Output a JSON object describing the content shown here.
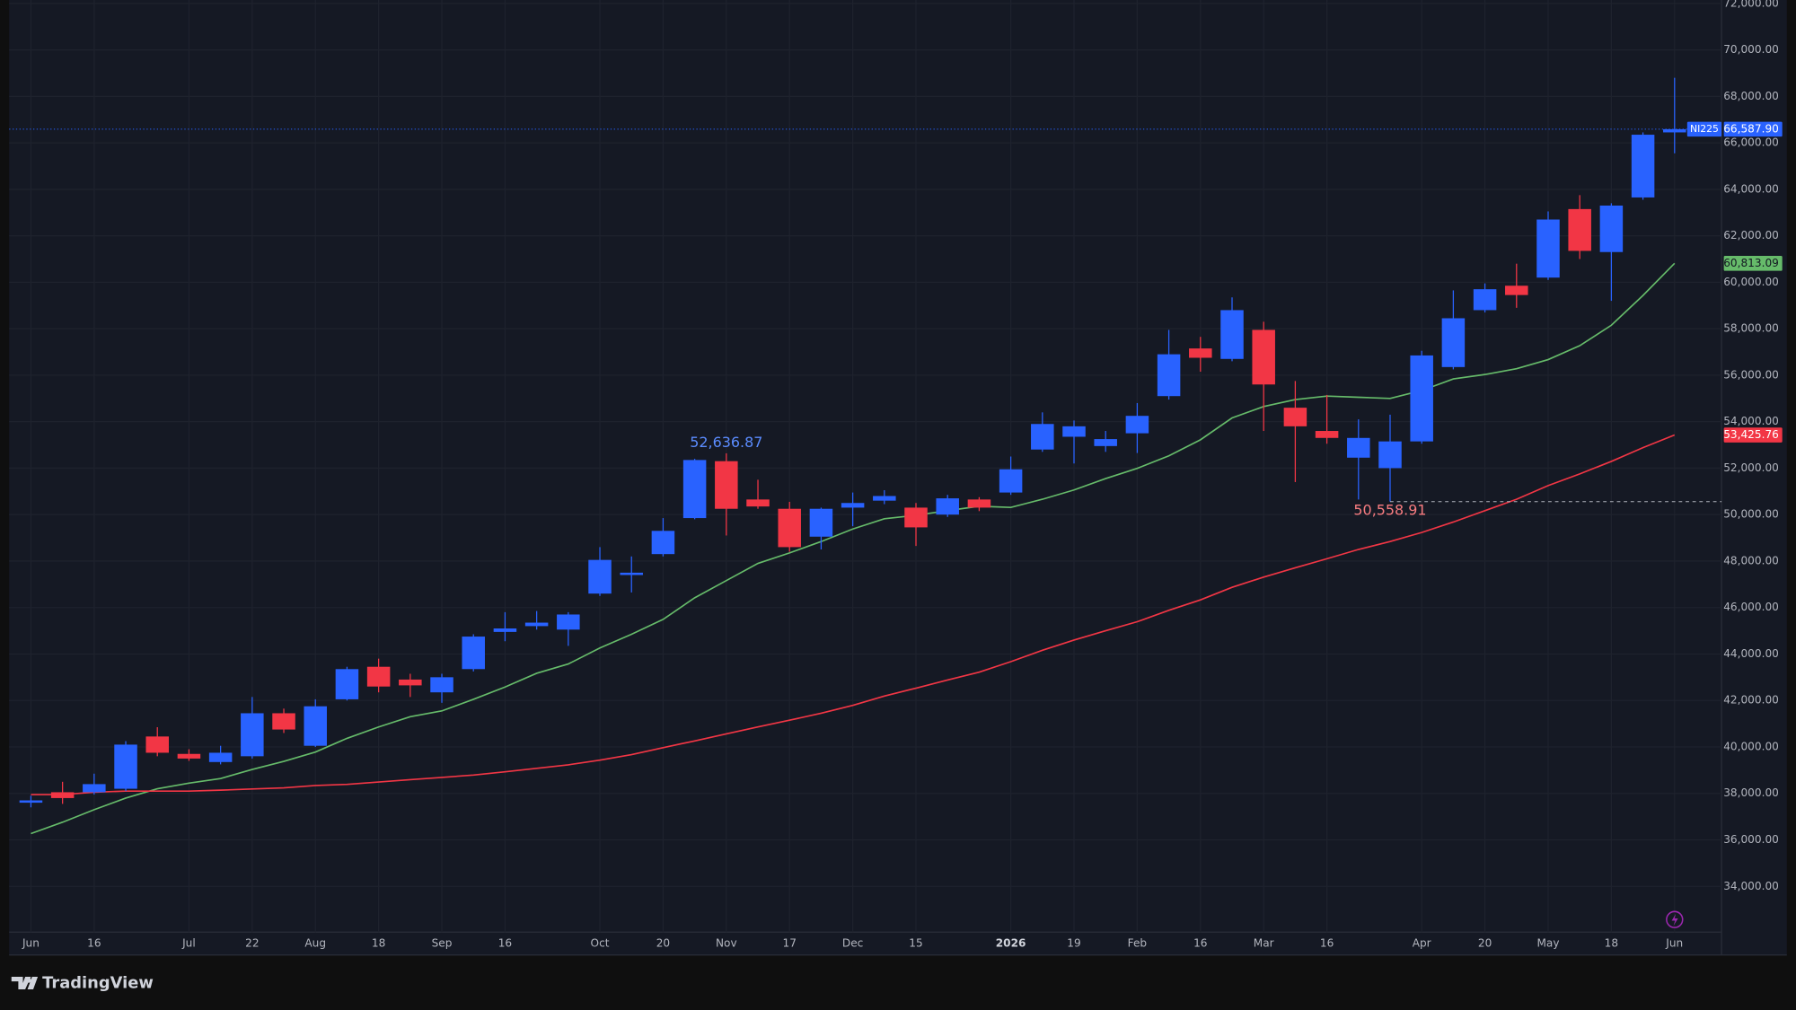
{
  "brand": "TradingView",
  "chart_data": {
    "type": "candlestick",
    "symbol": "NI225",
    "categories": [
      "Jun",
      null,
      "16",
      null,
      null,
      "Jul",
      null,
      "22",
      null,
      "Aug",
      null,
      "18",
      null,
      "Sep",
      null,
      "16",
      null,
      null,
      "Oct",
      null,
      "20",
      null,
      "Nov",
      null,
      "17",
      null,
      "Dec",
      null,
      "15",
      null,
      null,
      "2026",
      null,
      "19",
      null,
      "Feb",
      null,
      "16",
      null,
      "Mar",
      null,
      "16",
      null,
      null,
      "Apr",
      null,
      "20",
      null,
      "May",
      null,
      "18",
      null,
      "Jun"
    ],
    "open": [
      37600,
      38050,
      38050,
      38200,
      40450,
      39700,
      39350,
      39600,
      41450,
      40050,
      42050,
      43450,
      42900,
      42350,
      43350,
      44950,
      45200,
      45050,
      46600,
      47400,
      48300,
      49850,
      52300,
      50650,
      50250,
      49050,
      50300,
      50600,
      50300,
      50000,
      50650,
      50950,
      52800,
      53350,
      52950,
      53500,
      55100,
      57150,
      56700,
      57950,
      54600,
      53600,
      52450,
      52000,
      53150,
      56350,
      58800,
      59850,
      60200,
      63150,
      61300,
      63650,
      66450
    ],
    "high": [
      37900,
      38500,
      38850,
      40250,
      40850,
      39900,
      40050,
      42150,
      41650,
      42050,
      43450,
      43800,
      43150,
      43150,
      44850,
      45800,
      45850,
      45800,
      48600,
      48200,
      49850,
      52400,
      52636.87,
      51500,
      50550,
      50300,
      50950,
      51050,
      50500,
      50850,
      50750,
      52500,
      54400,
      54050,
      53600,
      54800,
      57950,
      57650,
      59350,
      58300,
      55750,
      55150,
      54100,
      54300,
      57050,
      59650,
      59950,
      60800,
      63050,
      63750,
      63400,
      66450,
      68800
    ],
    "low": [
      37400,
      37550,
      37950,
      38100,
      39600,
      39400,
      39250,
      39500,
      40600,
      40000,
      42000,
      42350,
      42150,
      41900,
      43250,
      44550,
      45050,
      44350,
      46500,
      46650,
      48200,
      49800,
      49100,
      50250,
      48400,
      48500,
      49500,
      50450,
      48650,
      49900,
      50150,
      50850,
      52700,
      52200,
      52700,
      52650,
      54950,
      56150,
      56600,
      53600,
      51400,
      53050,
      50650,
      50558.91,
      53050,
      56250,
      58700,
      58900,
      60100,
      61000,
      59200,
      63550,
      65550
    ],
    "close": [
      37700,
      37800,
      38400,
      40100,
      39750,
      39500,
      39750,
      41450,
      40750,
      41750,
      43350,
      42600,
      42650,
      43000,
      44750,
      45100,
      45350,
      45700,
      48050,
      47500,
      49300,
      52350,
      50250,
      50350,
      48600,
      50250,
      50500,
      50800,
      49450,
      50700,
      50300,
      51950,
      53900,
      53800,
      53250,
      54250,
      56900,
      56750,
      58800,
      55600,
      53800,
      53300,
      53300,
      53150,
      56850,
      58450,
      59700,
      59450,
      62700,
      61350,
      63300,
      66350,
      66587.9
    ],
    "high_labels": [
      null,
      null,
      null,
      null,
      null,
      null,
      null,
      null,
      null,
      null,
      null,
      null,
      null,
      null,
      null,
      null,
      null,
      null,
      null,
      null,
      null,
      null,
      "52,636.87",
      null,
      null,
      null,
      null,
      null,
      null,
      null,
      null,
      null,
      null,
      null,
      null,
      null,
      null,
      null,
      null,
      null,
      null,
      null,
      null,
      null,
      null,
      null,
      null,
      null,
      null,
      null,
      null,
      null,
      null
    ],
    "low_labels": [
      null,
      null,
      null,
      null,
      null,
      null,
      null,
      null,
      null,
      null,
      null,
      null,
      null,
      null,
      null,
      null,
      null,
      null,
      null,
      null,
      null,
      null,
      null,
      null,
      null,
      null,
      null,
      null,
      null,
      null,
      null,
      null,
      null,
      null,
      null,
      null,
      null,
      null,
      null,
      null,
      null,
      null,
      null,
      "50,558.91",
      null,
      null,
      null,
      null,
      null,
      null,
      null,
      null,
      null
    ],
    "close_labels": [
      null,
      null,
      null,
      null,
      null,
      null,
      null,
      null,
      null,
      null,
      null,
      null,
      null,
      null,
      null,
      null,
      null,
      null,
      null,
      null,
      null,
      null,
      null,
      null,
      null,
      null,
      null,
      null,
      null,
      null,
      null,
      null,
      null,
      null,
      null,
      null,
      null,
      null,
      null,
      null,
      null,
      null,
      null,
      null,
      null,
      null,
      null,
      null,
      null,
      null,
      null,
      null,
      "66,587.90"
    ],
    "up_color": "#2962ff",
    "down_color": "#f23645",
    "moving_averages": [
      {
        "color": "#66bb6a",
        "values": [
          36270,
          36760,
          37300,
          37800,
          38200,
          38440,
          38640,
          39030,
          39380,
          39780,
          40370,
          40860,
          41300,
          41550,
          42050,
          42580,
          43170,
          43570,
          44260,
          44850,
          45490,
          46420,
          47160,
          47900,
          48350,
          48840,
          49380,
          49820,
          49970,
          50170,
          50360,
          50310,
          50660,
          51060,
          51550,
          51990,
          52530,
          53220,
          54160,
          54650,
          54950,
          55100,
          55050,
          55000,
          55340,
          55840,
          56030,
          56280,
          56670,
          57270,
          58150,
          59430,
          60813.09
        ],
        "value_labels": [
          null,
          null,
          null,
          null,
          null,
          null,
          null,
          null,
          null,
          null,
          null,
          null,
          null,
          null,
          null,
          null,
          null,
          null,
          null,
          null,
          null,
          null,
          null,
          null,
          null,
          null,
          null,
          null,
          null,
          null,
          null,
          null,
          null,
          null,
          null,
          null,
          null,
          null,
          null,
          null,
          null,
          null,
          null,
          null,
          null,
          null,
          null,
          null,
          null,
          null,
          null,
          null,
          "60,813.09"
        ]
      },
      {
        "color": "#f23645",
        "values": [
          37950,
          37950,
          38050,
          38100,
          38100,
          38100,
          38140,
          38190,
          38240,
          38340,
          38390,
          38490,
          38590,
          38690,
          38790,
          38930,
          39080,
          39230,
          39430,
          39670,
          39970,
          40260,
          40560,
          40860,
          41150,
          41450,
          41790,
          42190,
          42530,
          42880,
          43220,
          43670,
          44160,
          44600,
          45000,
          45390,
          45880,
          46330,
          46870,
          47310,
          47710,
          48100,
          48500,
          48840,
          49230,
          49680,
          50170,
          50660,
          51250,
          51750,
          52290,
          52880,
          53425.76
        ],
        "value_labels": [
          null,
          null,
          null,
          null,
          null,
          null,
          null,
          null,
          null,
          null,
          null,
          null,
          null,
          null,
          null,
          null,
          null,
          null,
          null,
          null,
          null,
          null,
          null,
          null,
          null,
          null,
          null,
          null,
          null,
          null,
          null,
          null,
          null,
          null,
          null,
          null,
          null,
          null,
          null,
          null,
          null,
          null,
          null,
          null,
          null,
          null,
          null,
          null,
          null,
          null,
          null,
          null,
          "53,425.76"
        ]
      }
    ],
    "ylim": [
      32000,
      72000
    ],
    "yticks": [
      {
        "value": 34000,
        "label": "34,000.00"
      },
      {
        "value": 36000,
        "label": "36,000.00"
      },
      {
        "value": 38000,
        "label": "38,000.00"
      },
      {
        "value": 40000,
        "label": "40,000.00"
      },
      {
        "value": 42000,
        "label": "42,000.00"
      },
      {
        "value": 44000,
        "label": "44,000.00"
      },
      {
        "value": 46000,
        "label": "46,000.00"
      },
      {
        "value": 48000,
        "label": "48,000.00"
      },
      {
        "value": 50000,
        "label": "50,000.00"
      },
      {
        "value": 52000,
        "label": "52,000.00"
      },
      {
        "value": 54000,
        "label": "54,000.00"
      },
      {
        "value": 56000,
        "label": "56,000.00"
      },
      {
        "value": 58000,
        "label": "58,000.00"
      },
      {
        "value": 60000,
        "label": "60,000.00"
      },
      {
        "value": 62000,
        "label": "62,000.00"
      },
      {
        "value": 64000,
        "label": "64,000.00"
      },
      {
        "value": 66000,
        "label": "66,000.00"
      },
      {
        "value": 68000,
        "label": "68,000.00"
      },
      {
        "value": 70000,
        "label": "70,000.00"
      },
      {
        "value": 72000,
        "label": "72,000.00"
      }
    ],
    "grid": true
  }
}
